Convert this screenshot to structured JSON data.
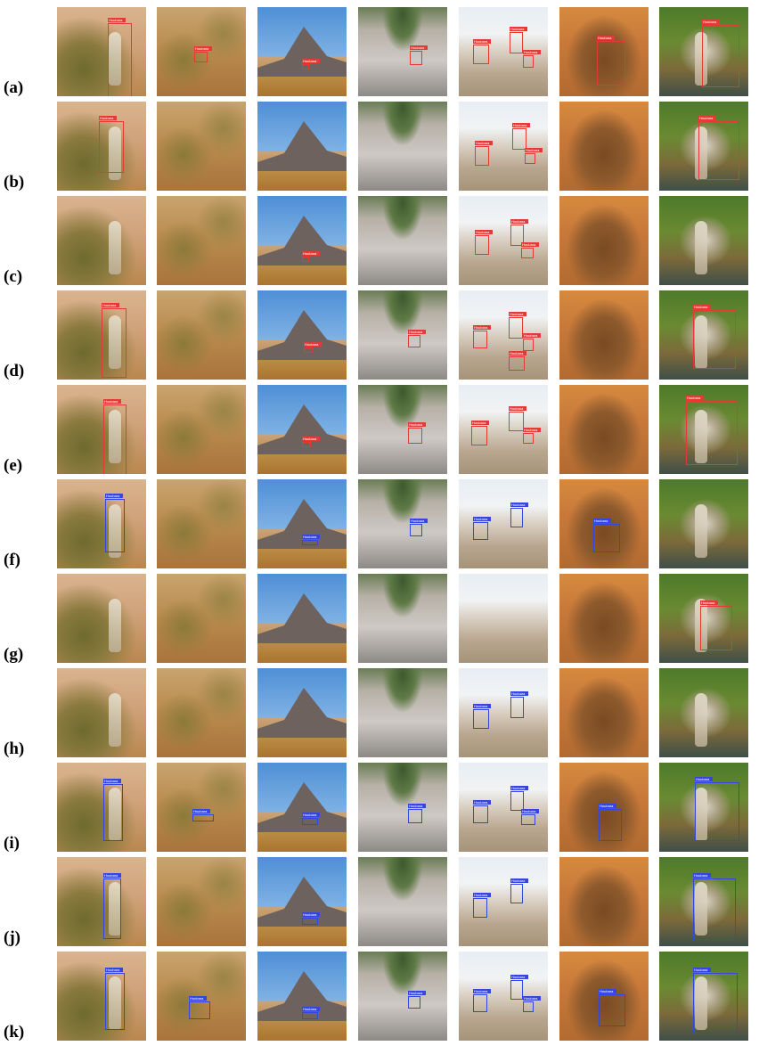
{
  "row_labels": [
    "(a)",
    "(b)",
    "(c)",
    "(d)",
    "(e)",
    "(f)",
    "(g)",
    "(h)",
    "(i)",
    "(j)",
    "(k)"
  ],
  "class_label": "Houbara",
  "colors": {
    "red_box": "#e53935",
    "blue_box": "#3346e0"
  },
  "scenes": [
    "bird-in-dry-grass",
    "desert-scrub",
    "volcanic-hill",
    "stony-plain-with-shrubs",
    "flock-on-bright-plain",
    "bush-closeup",
    "bird-standing-closeup"
  ]
}
